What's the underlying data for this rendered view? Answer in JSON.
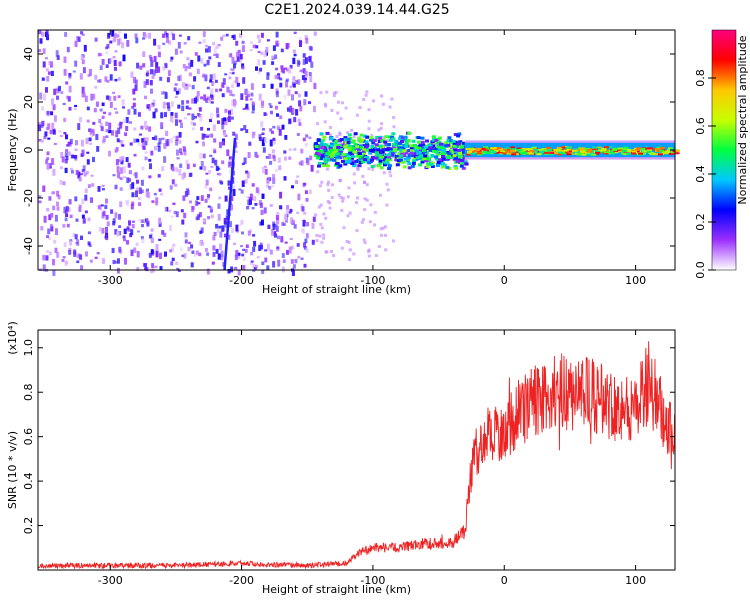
{
  "page_title": "C2E1.2024.039.14.44.G25",
  "chart_data": [
    {
      "type": "heatmap",
      "title": "C2E1.2024.039.14.44.G25",
      "xlabel": "Height of straight line (km)",
      "ylabel": "Frequency (Hz)",
      "xlim": [
        -355,
        130
      ],
      "ylim": [
        -50,
        50
      ],
      "xticks": [
        -300,
        -200,
        -100,
        0,
        100
      ],
      "yticks": [
        -40,
        -20,
        0,
        20,
        40
      ],
      "colorbar": {
        "label": "Normalized spectral amplitude",
        "range": [
          0,
          1
        ],
        "ticks": [
          0.0,
          0.2,
          0.4,
          0.6,
          0.8
        ],
        "colors": [
          "#ffffff",
          "#9b30ff",
          "#0000ff",
          "#00c8ff",
          "#00ff40",
          "#c8ff00",
          "#ffc800",
          "#ff0000",
          "#ff0080"
        ]
      },
      "features": [
        {
          "x_range": [
            -355,
            -145
          ],
          "frequency_range": [
            -50,
            50
          ],
          "amplitude": 0.1
        },
        {
          "x_range": [
            -145,
            -30
          ],
          "frequency_center": 0,
          "frequency_halfwidth": 8,
          "amplitude": 0.4
        },
        {
          "x_range": [
            -30,
            130
          ],
          "frequency_center": 0,
          "frequency_halfwidth": 3,
          "amplitude": 0.75
        },
        {
          "x_range": [
            -213,
            -205
          ],
          "frequency_range": [
            -50,
            5
          ],
          "amplitude": 0.2
        }
      ]
    },
    {
      "type": "line",
      "xlabel": "Height of straight line (km)",
      "ylabel": "SNR (10 * v/v)",
      "y_scale_label": "(x10⁴)",
      "xlim": [
        -355,
        130
      ],
      "ylim": [
        0,
        1.08
      ],
      "xticks": [
        -300,
        -200,
        -100,
        0,
        100
      ],
      "yticks": [
        0.2,
        0.4,
        0.6,
        0.8,
        1.0
      ],
      "color": "#ee2222",
      "series": [
        {
          "x": [
            -355,
            -300,
            -250,
            -200,
            -150,
            -120,
            -110,
            -100,
            -80,
            -60,
            -40,
            -30,
            -25,
            -20,
            -10,
            0,
            10,
            20,
            30,
            40,
            60,
            80,
            100,
            110,
            120,
            130
          ],
          "y": [
            0.02,
            0.02,
            0.02,
            0.03,
            0.02,
            0.03,
            0.08,
            0.1,
            0.1,
            0.12,
            0.12,
            0.18,
            0.45,
            0.55,
            0.62,
            0.62,
            0.7,
            0.75,
            0.78,
            0.8,
            0.8,
            0.75,
            0.72,
            0.85,
            0.7,
            0.6
          ]
        }
      ]
    }
  ]
}
